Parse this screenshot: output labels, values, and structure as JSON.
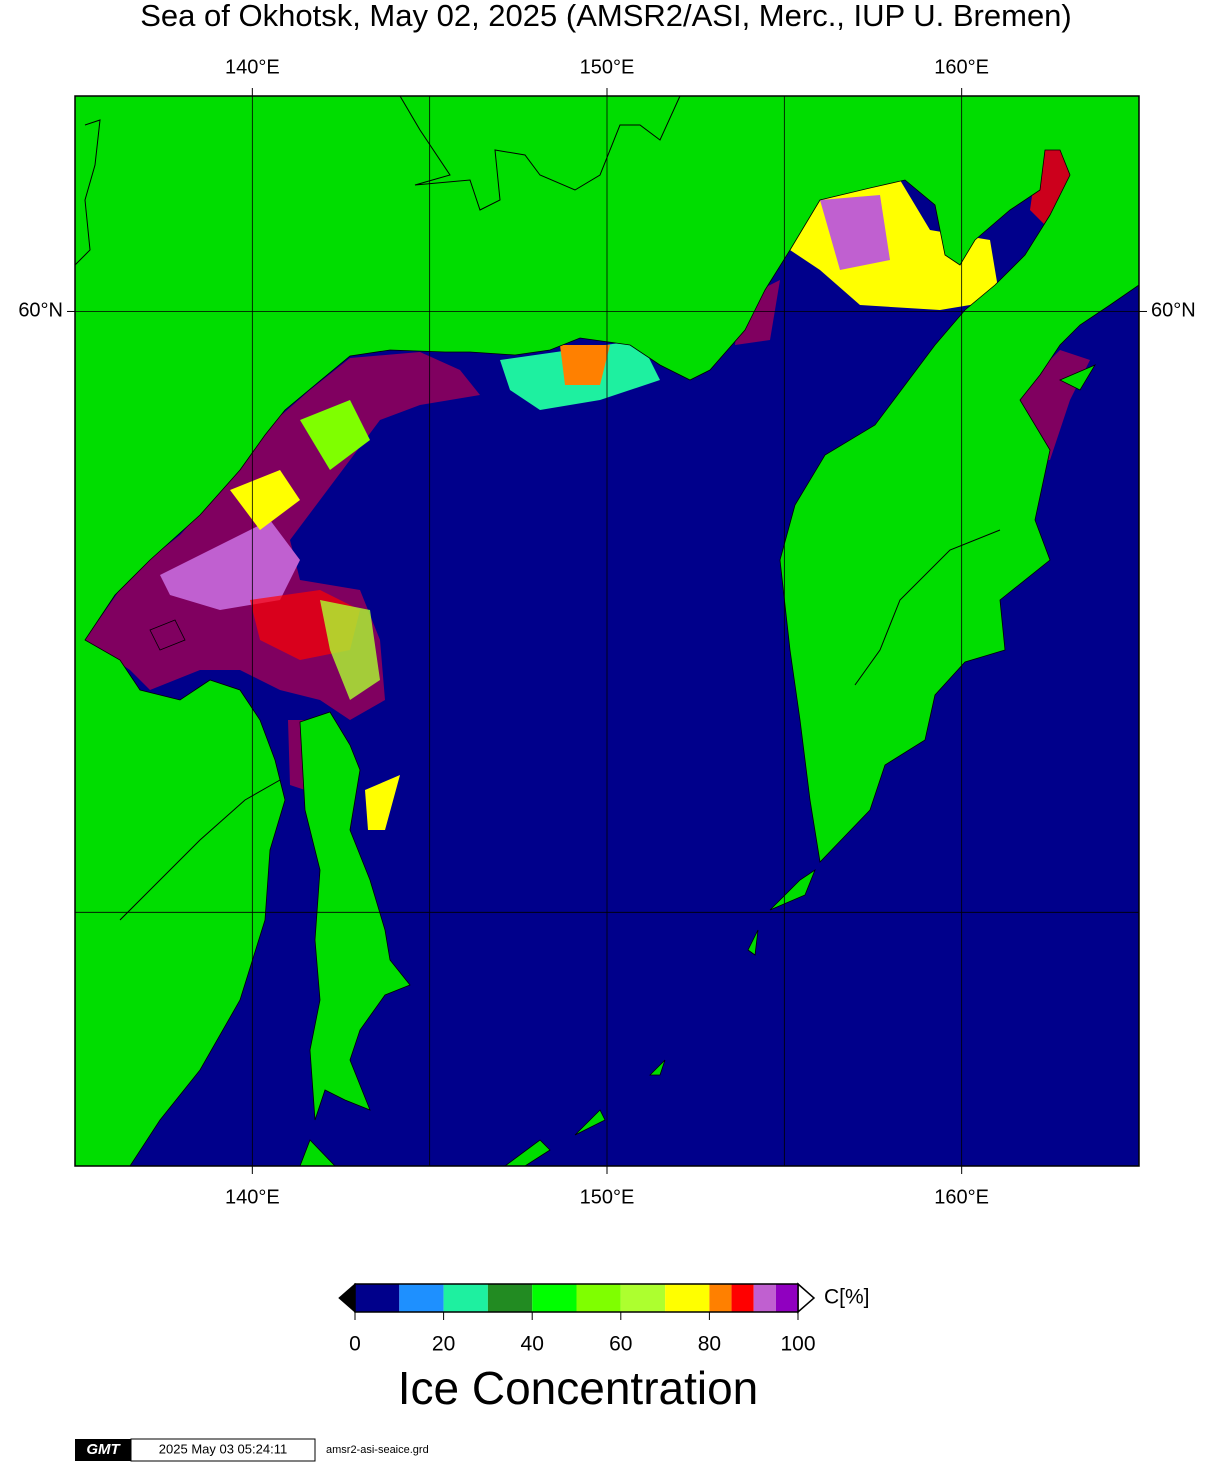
{
  "title": "Sea of Okhotsk, May 02, 2025 (AMSR2/ASI, Merc., IUP U. Bremen)",
  "map": {
    "lonlim": [
      135,
      165
    ],
    "latlim": [
      45,
      63
    ],
    "lon_ticks": [
      {
        "value": 140,
        "label": "140°E"
      },
      {
        "value": 150,
        "label": "150°E"
      },
      {
        "value": 160,
        "label": "160°E"
      }
    ],
    "lat_ticks": [
      {
        "value": 60,
        "label": "60°N"
      }
    ],
    "lon_grid": [
      145,
      155,
      165
    ],
    "lat_grid": [
      50
    ],
    "ocean_color": "#00008b",
    "land_color": "#00dd00"
  },
  "colorbar": {
    "bins": [
      0,
      10,
      20,
      30,
      40,
      50,
      60,
      70,
      80,
      85,
      90,
      95,
      100
    ],
    "colors": [
      "#00008b",
      "#1e90ff",
      "#1ef0a0",
      "#228b22",
      "#00ff00",
      "#7fff00",
      "#adff2f",
      "#ffff00",
      "#ff8000",
      "#ff0000",
      "#c060d0",
      "#9000c0"
    ],
    "ticks": [
      0,
      20,
      40,
      60,
      80,
      100
    ],
    "unit_label": "C[%]",
    "title": "Ice Concentration"
  },
  "footer": {
    "logo": "GMT",
    "timestamp": "2025 May 03 05:24:11",
    "file": "amsr2-asi-seaice.grd"
  }
}
